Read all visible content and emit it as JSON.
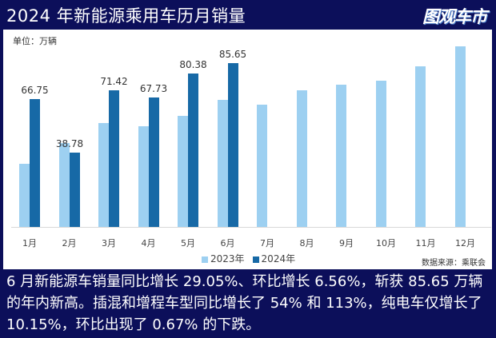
{
  "header": {
    "title": "2024 年新能源乘用车历月销量",
    "logo_text": "图观车市"
  },
  "chart_data": {
    "type": "bar",
    "title": "2024 年新能源乘用车历月销量",
    "unit_label": "单位：万辆",
    "categories": [
      "1月",
      "2月",
      "3月",
      "4月",
      "5月",
      "6月",
      "7月",
      "8月",
      "9月",
      "10月",
      "11月",
      "12月"
    ],
    "series": [
      {
        "name": "2023年",
        "color": "#9dd0f1",
        "values": [
          33.2,
          43.9,
          54.6,
          52.7,
          58.0,
          66.4,
          64.1,
          71.6,
          74.6,
          76.7,
          84.1,
          94.7
        ]
      },
      {
        "name": "2024年",
        "color": "#1769a6",
        "values": [
          66.75,
          38.78,
          71.42,
          67.73,
          80.38,
          85.65,
          null,
          null,
          null,
          null,
          null,
          null
        ]
      }
    ],
    "data_labels": [
      "66.75",
      "38.78",
      "71.42",
      "67.73",
      "80.38",
      "85.65"
    ],
    "xlabel": "",
    "ylabel": "",
    "ylim": [
      0,
      100
    ],
    "grid": false,
    "legend_position": "bottom",
    "source": "数据来源：乘联会"
  },
  "legend": {
    "s2023": "2023年",
    "s2024": "2024年"
  },
  "caption": "6 月新能源车销量同比增长 29.05%、环比增长 6.56%，斩获 85.65 万辆的年内新高。插混和增程车型同比增长了 54% 和 113%，纯电车仅增长了 10.15%，环比出现了 0.67% 的下跌。"
}
